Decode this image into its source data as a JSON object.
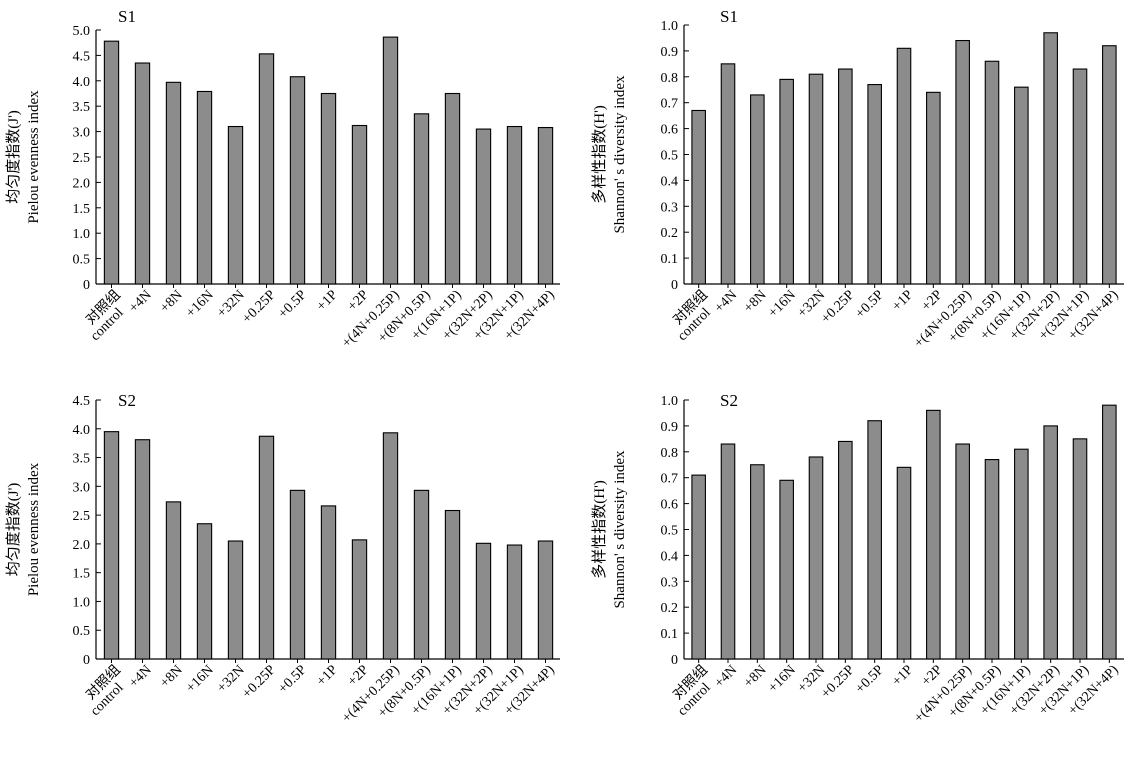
{
  "categories": [
    "对照组|control",
    "+4N",
    "+8N",
    "+16N",
    "+32N",
    "+0.25P",
    "+0.5P",
    "+1P",
    "+2P",
    "+(4N+0.25P)",
    "+(8N+0.5P)",
    "+(16N+1P)",
    "+(32N+2P)",
    "+(32N+1P)",
    "+(32N+4P)"
  ],
  "chart_data": [
    {
      "type": "bar",
      "title": "S1",
      "ylabel": "均匀度指数(J')|Pielou evenness index",
      "categories": [
        "对照组|control",
        "+4N",
        "+8N",
        "+16N",
        "+32N",
        "+0.25P",
        "+0.5P",
        "+1P",
        "+2P",
        "+(4N+0.25P)",
        "+(8N+0.5P)",
        "+(16N+1P)",
        "+(32N+2P)",
        "+(32N+1P)",
        "+(32N+4P)"
      ],
      "values": [
        4.78,
        4.35,
        3.97,
        3.79,
        3.1,
        4.53,
        4.08,
        3.75,
        3.12,
        4.86,
        3.35,
        3.75,
        3.05,
        3.1,
        3.08
      ],
      "ylim": [
        0,
        5
      ],
      "yticks": [
        "0",
        "0.5",
        "1.0",
        "1.5",
        "2.0",
        "2.5",
        "3.0",
        "3.5",
        "4.0",
        "4.5",
        "5.0"
      ],
      "bar_color": "#8c8c8c"
    },
    {
      "type": "bar",
      "title": "S1",
      "ylabel": "多样性指数(H')|Shannon' s diversity index",
      "categories": [
        "对照组|control",
        "+4N",
        "+8N",
        "+16N",
        "+32N",
        "+0.25P",
        "+0.5P",
        "+1P",
        "+2P",
        "+(4N+0.25P)",
        "+(8N+0.5P)",
        "+(16N+1P)",
        "+(32N+2P)",
        "+(32N+1P)",
        "+(32N+4P)"
      ],
      "values": [
        0.67,
        0.85,
        0.73,
        0.79,
        0.81,
        0.83,
        0.77,
        0.91,
        0.74,
        0.94,
        0.86,
        0.76,
        0.97,
        0.83,
        0.92
      ],
      "ylim": [
        0,
        1
      ],
      "yticks": [
        "0",
        "0.1",
        "0.2",
        "0.3",
        "0.4",
        "0.5",
        "0.6",
        "0.7",
        "0.8",
        "0.9",
        "1.0"
      ],
      "bar_color": "#8c8c8c"
    },
    {
      "type": "bar",
      "title": "S2",
      "ylabel": "均匀度指数(J')|Pielou evenness index",
      "categories": [
        "对照组|control",
        "+4N",
        "+8N",
        "+16N",
        "+32N",
        "+0.25P",
        "+0.5P",
        "+1P",
        "+2P",
        "+(4N+0.25P)",
        "+(8N+0.5P)",
        "+(16N+1P)",
        "+(32N+2P)",
        "+(32N+1P)",
        "+(32N+4P)"
      ],
      "values": [
        3.95,
        3.81,
        2.73,
        2.35,
        2.05,
        3.87,
        2.93,
        2.66,
        2.07,
        3.93,
        2.93,
        2.58,
        2.01,
        1.98,
        2.05
      ],
      "ylim": [
        0,
        4.5
      ],
      "yticks": [
        "0",
        "0.5",
        "1.0",
        "1.5",
        "2.0",
        "2.5",
        "3.0",
        "3.5",
        "4.0",
        "4.5"
      ],
      "bar_color": "#8c8c8c"
    },
    {
      "type": "bar",
      "title": "S2",
      "ylabel": "多样性指数(H')|Shannon' s diversity index",
      "categories": [
        "对照组|control",
        "+4N",
        "+8N",
        "+16N",
        "+32N",
        "+0.25P",
        "+0.5P",
        "+1P",
        "+2P",
        "+(4N+0.25P)",
        "+(8N+0.5P)",
        "+(16N+1P)",
        "+(32N+2P)",
        "+(32N+1P)",
        "+(32N+4P)"
      ],
      "values": [
        0.71,
        0.83,
        0.75,
        0.69,
        0.78,
        0.84,
        0.92,
        0.74,
        0.96,
        0.83,
        0.77,
        0.81,
        0.9,
        0.85,
        0.98
      ],
      "ylim": [
        0,
        1
      ],
      "yticks": [
        "0",
        "0.1",
        "0.2",
        "0.3",
        "0.4",
        "0.5",
        "0.6",
        "0.7",
        "0.8",
        "0.9",
        "1.0"
      ],
      "bar_color": "#8c8c8c"
    }
  ]
}
